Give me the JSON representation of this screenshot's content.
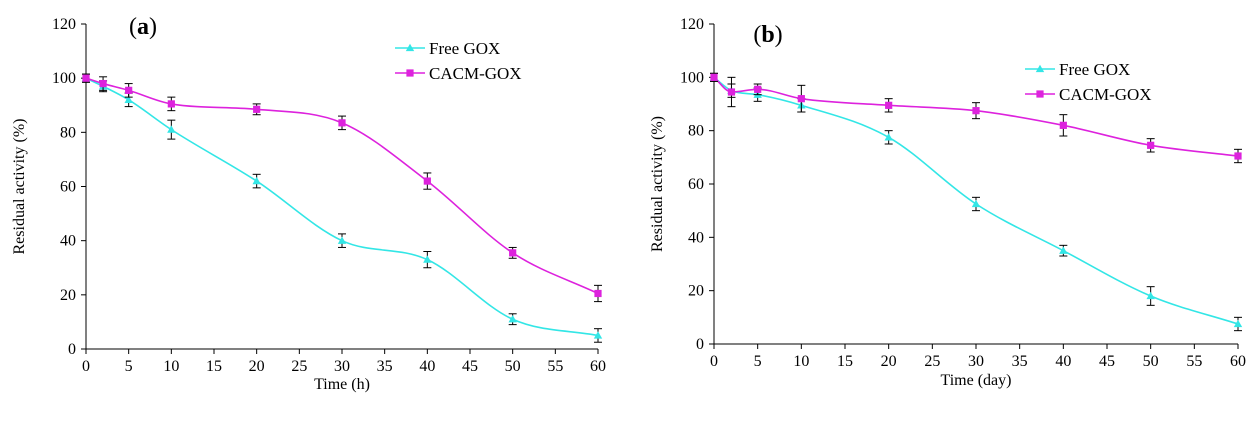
{
  "chart_data": [
    {
      "type": "line",
      "panel_label": "a",
      "xlabel": "Time (h)",
      "ylabel": "Residual activity (%)",
      "xlim": [
        0,
        60
      ],
      "ylim": [
        0,
        120
      ],
      "x_ticks": [
        0,
        5,
        10,
        15,
        20,
        25,
        30,
        35,
        40,
        45,
        50,
        55,
        60
      ],
      "y_ticks": [
        0,
        20,
        40,
        60,
        80,
        100,
        120
      ],
      "grid": false,
      "legend_position": "top-right",
      "series": [
        {
          "name": "Free GOX",
          "color": "#33e6e6",
          "marker": "triangle",
          "x": [
            0,
            2,
            5,
            10,
            20,
            30,
            40,
            50,
            60
          ],
          "y": [
            100,
            97,
            92,
            81,
            62,
            40,
            33,
            11,
            5
          ],
          "err": [
            1.5,
            2,
            2.5,
            3.5,
            2.5,
            2.5,
            3,
            2,
            2.5
          ]
        },
        {
          "name": "CACM-GOX",
          "color": "#dd22dd",
          "marker": "square",
          "x": [
            0,
            2,
            5,
            10,
            20,
            30,
            40,
            50,
            60
          ],
          "y": [
            100,
            98,
            95.5,
            90.5,
            88.5,
            83.5,
            62,
            35.5,
            20.5
          ],
          "err": [
            1.5,
            2.5,
            2.5,
            2.5,
            2,
            2.5,
            3,
            2,
            3
          ]
        }
      ]
    },
    {
      "type": "line",
      "panel_label": "b",
      "xlabel": "Time (day)",
      "ylabel": "Residual activity (%)",
      "xlim": [
        0,
        60
      ],
      "ylim": [
        0,
        120
      ],
      "x_ticks": [
        0,
        5,
        10,
        15,
        20,
        25,
        30,
        35,
        40,
        45,
        50,
        55,
        60
      ],
      "y_ticks": [
        0,
        20,
        40,
        60,
        80,
        100,
        120
      ],
      "grid": false,
      "legend_position": "top-right",
      "series": [
        {
          "name": "Free GOX",
          "color": "#33e6e6",
          "marker": "triangle",
          "x": [
            0,
            2,
            5,
            10,
            20,
            30,
            40,
            50,
            60
          ],
          "y": [
            100,
            95,
            93.5,
            89.5,
            77.5,
            52.5,
            35,
            18,
            7.5
          ],
          "err": [
            1.5,
            2.5,
            2.5,
            2.5,
            2.5,
            2.5,
            2,
            3.5,
            2.5
          ]
        },
        {
          "name": "CACM-GOX",
          "color": "#dd22dd",
          "marker": "square",
          "x": [
            0,
            2,
            5,
            10,
            20,
            30,
            40,
            50,
            60
          ],
          "y": [
            100,
            94.5,
            95.5,
            92,
            89.5,
            87.5,
            82,
            74.5,
            70.5
          ],
          "err": [
            1.5,
            5.5,
            2,
            5,
            2.5,
            3,
            4,
            2.5,
            2.5
          ]
        }
      ]
    }
  ]
}
